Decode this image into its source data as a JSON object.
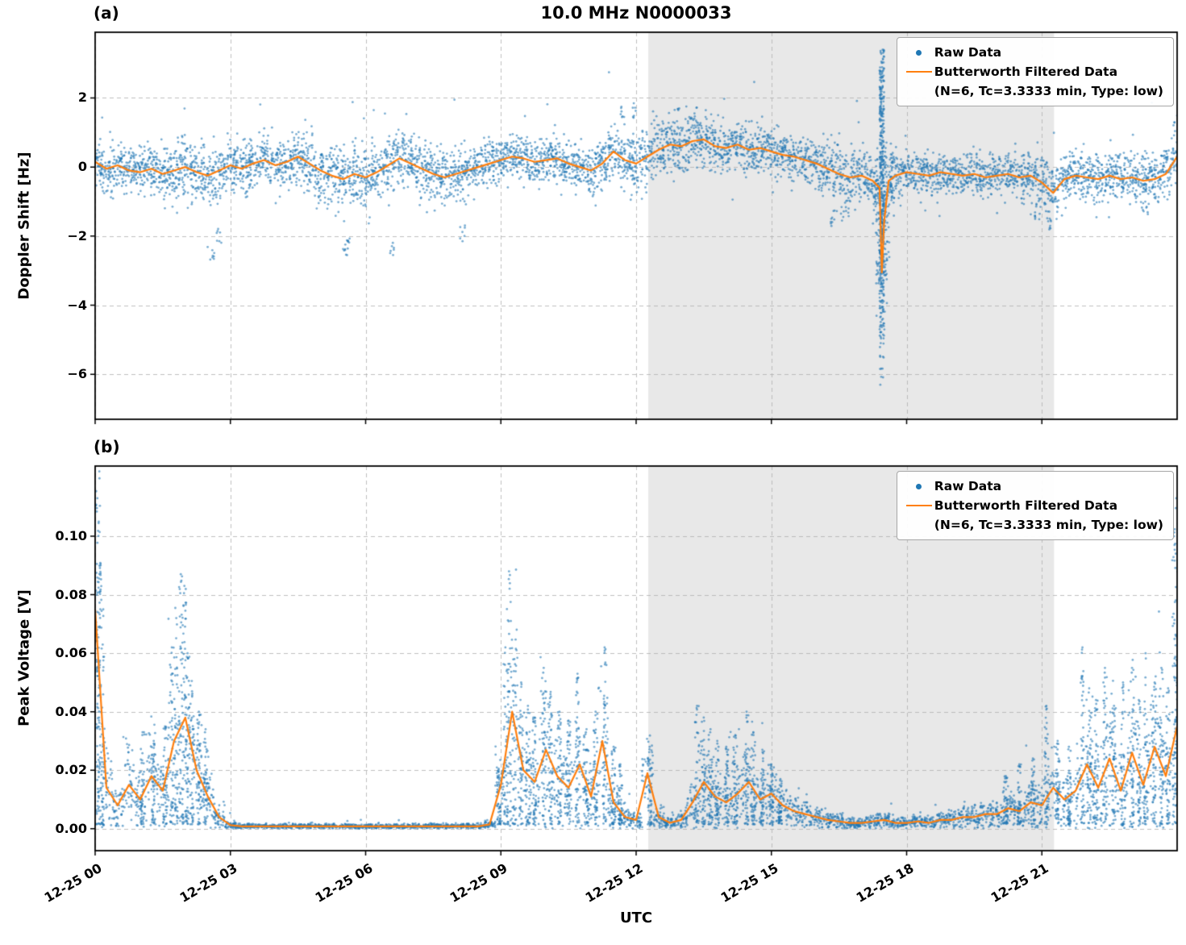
{
  "figure": {
    "title": "10.0 MHz N0000033",
    "xlabel": "UTC",
    "panels": [
      {
        "tag": "(a)",
        "ylabel": "Doppler Shift [Hz]"
      },
      {
        "tag": "(b)",
        "ylabel": "Peak Voltage [V]"
      }
    ]
  },
  "legend": {
    "raw_label": "Raw Data",
    "filtered_label": "Butterworth Filtered Data",
    "filtered_sublabel": "(N=6, Tc=3.3333 min, Type: low)"
  },
  "colors": {
    "raw": "#1f77b4",
    "filtered": "#ff7f0e",
    "shade": "#e8e8e8",
    "grid": "#b3b3b3",
    "axis": "#000000"
  },
  "chart_data": [
    {
      "type": "scatter",
      "panel": "(a)",
      "title": "10.0 MHz N0000033",
      "xlabel": "UTC",
      "ylabel": "Doppler Shift [Hz]",
      "xlim": [
        0,
        24
      ],
      "ylim": [
        -7.3,
        3.9
      ],
      "xticks": [
        0,
        3,
        6,
        9,
        12,
        15,
        18,
        21
      ],
      "xtick_labels": [
        "12-25 00",
        "12-25 03",
        "12-25 06",
        "12-25 09",
        "12-25 12",
        "12-25 15",
        "12-25 18",
        "12-25 21"
      ],
      "yticks": [
        2,
        0,
        -2,
        -4,
        -6
      ],
      "ytick_labels": [
        "2",
        "0",
        "−2",
        "−4",
        "−6"
      ],
      "shade_x": [
        12.27,
        21.27
      ],
      "show_xtick_labels": false,
      "legend_position": "upper right",
      "grid": "dashed",
      "series": [
        {
          "name": "Raw Data",
          "kind": "scatter"
        },
        {
          "name": "Butterworth Filtered Data (N=6, Tc=3.3333 min, Type: low)",
          "kind": "line"
        }
      ],
      "scatter_alpha": 0.6,
      "points_per_sample": 60,
      "x": [
        0,
        0.25,
        0.5,
        0.75,
        1,
        1.25,
        1.5,
        1.75,
        2,
        2.25,
        2.5,
        2.75,
        3,
        3.25,
        3.5,
        3.75,
        4,
        4.25,
        4.5,
        4.75,
        5,
        5.25,
        5.5,
        5.75,
        6,
        6.25,
        6.5,
        6.75,
        7,
        7.25,
        7.5,
        7.75,
        8,
        8.25,
        8.5,
        8.75,
        9,
        9.25,
        9.5,
        9.75,
        10,
        10.25,
        10.5,
        10.75,
        11,
        11.25,
        11.5,
        11.75,
        12,
        12.25,
        12.5,
        12.75,
        13,
        13.25,
        13.5,
        13.75,
        14,
        14.25,
        14.5,
        14.75,
        15,
        15.25,
        15.5,
        15.75,
        16,
        16.25,
        16.5,
        16.75,
        17,
        17.25,
        17.4,
        17.45,
        17.5,
        17.6,
        17.75,
        18,
        18.25,
        18.5,
        18.75,
        19,
        19.25,
        19.5,
        19.75,
        20,
        20.25,
        20.5,
        20.75,
        21,
        21.25,
        21.5,
        21.75,
        22,
        22.25,
        22.5,
        22.75,
        23,
        23.25,
        23.5,
        23.75,
        24
      ],
      "filtered": [
        0.15,
        -0.05,
        0.05,
        -0.1,
        -0.15,
        -0.05,
        -0.2,
        -0.1,
        0,
        -0.15,
        -0.25,
        -0.1,
        0.05,
        -0.05,
        0.1,
        0.2,
        0.05,
        0.15,
        0.3,
        0.1,
        -0.1,
        -0.25,
        -0.35,
        -0.2,
        -0.3,
        -0.15,
        0.05,
        0.25,
        0.1,
        -0.05,
        -0.2,
        -0.3,
        -0.2,
        -0.1,
        0,
        0.1,
        0.2,
        0.3,
        0.25,
        0.15,
        0.2,
        0.25,
        0.1,
        0,
        -0.1,
        0.1,
        0.45,
        0.2,
        0.1,
        0.3,
        0.5,
        0.65,
        0.6,
        0.75,
        0.8,
        0.6,
        0.55,
        0.65,
        0.5,
        0.55,
        0.45,
        0.35,
        0.3,
        0.2,
        0.1,
        -0.05,
        -0.2,
        -0.3,
        -0.25,
        -0.4,
        -0.6,
        -3.05,
        -1.6,
        -0.4,
        -0.25,
        -0.15,
        -0.2,
        -0.25,
        -0.15,
        -0.2,
        -0.25,
        -0.2,
        -0.3,
        -0.25,
        -0.2,
        -0.3,
        -0.25,
        -0.45,
        -0.75,
        -0.35,
        -0.25,
        -0.3,
        -0.35,
        -0.25,
        -0.35,
        -0.3,
        -0.4,
        -0.35,
        -0.2,
        0.3
      ],
      "spread": [
        0.3,
        0.3,
        0.3,
        0.3,
        0.32,
        0.32,
        0.4,
        0.42,
        0.42,
        0.42,
        0.44,
        0.42,
        0.4,
        0.38,
        0.35,
        0.35,
        0.35,
        0.35,
        0.35,
        0.36,
        0.4,
        0.42,
        0.42,
        0.4,
        0.4,
        0.38,
        0.4,
        0.4,
        0.38,
        0.38,
        0.4,
        0.4,
        0.38,
        0.35,
        0.33,
        0.32,
        0.3,
        0.3,
        0.28,
        0.28,
        0.28,
        0.28,
        0.28,
        0.3,
        0.32,
        0.36,
        0.4,
        0.38,
        0.4,
        0.42,
        0.42,
        0.4,
        0.4,
        0.38,
        0.36,
        0.35,
        0.35,
        0.34,
        0.33,
        0.33,
        0.32,
        0.3,
        0.3,
        0.3,
        0.32,
        0.38,
        0.42,
        0.42,
        0.4,
        0.42,
        0.5,
        0.6,
        0.55,
        0.45,
        0.35,
        0.32,
        0.3,
        0.3,
        0.3,
        0.3,
        0.3,
        0.3,
        0.3,
        0.3,
        0.3,
        0.3,
        0.32,
        0.38,
        0.42,
        0.35,
        0.32,
        0.32,
        0.32,
        0.32,
        0.32,
        0.32,
        0.34,
        0.34,
        0.35,
        0.4
      ],
      "outliers": [
        [
          2.6,
          -2.5
        ],
        [
          2.75,
          -2.0
        ],
        [
          5.55,
          -2.6
        ],
        [
          5.6,
          -2.2
        ],
        [
          6.6,
          -2.3
        ],
        [
          8.15,
          -1.9
        ],
        [
          11.7,
          1.5
        ],
        [
          11.95,
          1.6
        ],
        [
          12.9,
          1.5
        ],
        [
          13.3,
          1.5
        ],
        [
          16.35,
          -1.5
        ],
        [
          16.6,
          -1.4
        ],
        [
          20.9,
          -1.3
        ],
        [
          21.15,
          -1.6
        ],
        [
          23.3,
          -1.2
        ]
      ],
      "event": {
        "x": 17.45,
        "ymin": -6.8,
        "ymax": 3.4,
        "n": 380
      }
    },
    {
      "type": "scatter",
      "panel": "(b)",
      "xlabel": "UTC",
      "ylabel": "Peak Voltage [V]",
      "xlim": [
        0,
        24
      ],
      "ylim": [
        -0.0075,
        0.124
      ],
      "xticks": [
        0,
        3,
        6,
        9,
        12,
        15,
        18,
        21
      ],
      "xtick_labels": [
        "12-25 00",
        "12-25 03",
        "12-25 06",
        "12-25 09",
        "12-25 12",
        "12-25 15",
        "12-25 18",
        "12-25 21"
      ],
      "yticks": [
        0,
        0.02,
        0.04,
        0.06,
        0.08,
        0.1
      ],
      "ytick_labels": [
        "0.00",
        "0.02",
        "0.04",
        "0.06",
        "0.08",
        "0.10"
      ],
      "shade_x": [
        12.27,
        21.27
      ],
      "show_xtick_labels": true,
      "legend_position": "upper right",
      "grid": "dashed",
      "series": [
        {
          "name": "Raw Data",
          "kind": "scatter"
        },
        {
          "name": "Butterworth Filtered Data (N=6, Tc=3.3333 min, Type: low)",
          "kind": "line"
        }
      ],
      "scatter_alpha": 0.6,
      "points_per_sample": 45,
      "nonneg": true,
      "spread_factor": 0.45,
      "spread_min": 0.0001,
      "x": [
        0,
        0.25,
        0.5,
        0.75,
        1,
        1.25,
        1.5,
        1.75,
        2,
        2.25,
        2.5,
        2.75,
        3,
        3.25,
        3.5,
        3.75,
        4,
        4.25,
        4.5,
        4.75,
        5,
        5.25,
        5.5,
        5.75,
        6,
        6.25,
        6.5,
        6.75,
        7,
        7.25,
        7.5,
        7.75,
        8,
        8.25,
        8.5,
        8.75,
        9,
        9.25,
        9.5,
        9.75,
        10,
        10.25,
        10.5,
        10.75,
        11,
        11.25,
        11.5,
        11.75,
        12,
        12.25,
        12.5,
        12.75,
        13,
        13.25,
        13.5,
        13.75,
        14,
        14.25,
        14.5,
        14.75,
        15,
        15.25,
        15.5,
        15.75,
        16,
        16.25,
        16.5,
        16.75,
        17,
        17.25,
        17.5,
        17.75,
        18,
        18.25,
        18.5,
        18.75,
        19,
        19.25,
        19.5,
        19.75,
        20,
        20.25,
        20.5,
        20.75,
        21,
        21.25,
        21.5,
        21.75,
        22,
        22.25,
        22.5,
        22.75,
        23,
        23.25,
        23.5,
        23.75,
        24
      ],
      "filtered": [
        0.075,
        0.014,
        0.008,
        0.015,
        0.01,
        0.018,
        0.013,
        0.03,
        0.038,
        0.02,
        0.011,
        0.004,
        0.0012,
        0.0008,
        0.0008,
        0.0008,
        0.0008,
        0.0008,
        0.0008,
        0.0008,
        0.0008,
        0.0008,
        0.0008,
        0.0008,
        0.0008,
        0.0008,
        0.0008,
        0.0008,
        0.0008,
        0.0008,
        0.0008,
        0.0008,
        0.0008,
        0.0008,
        0.0008,
        0.0015,
        0.015,
        0.04,
        0.02,
        0.016,
        0.027,
        0.018,
        0.014,
        0.022,
        0.011,
        0.03,
        0.009,
        0.004,
        0.003,
        0.019,
        0.004,
        0.002,
        0.003,
        0.009,
        0.016,
        0.011,
        0.009,
        0.012,
        0.016,
        0.01,
        0.012,
        0.008,
        0.006,
        0.005,
        0.004,
        0.003,
        0.0025,
        0.002,
        0.002,
        0.0025,
        0.003,
        0.002,
        0.002,
        0.0025,
        0.002,
        0.003,
        0.003,
        0.004,
        0.004,
        0.005,
        0.005,
        0.007,
        0.006,
        0.009,
        0.008,
        0.014,
        0.01,
        0.013,
        0.022,
        0.014,
        0.024,
        0.013,
        0.026,
        0.015,
        0.028,
        0.018,
        0.035
      ],
      "peaks": [
        [
          0.05,
          0.113
        ],
        [
          0.08,
          0.105
        ],
        [
          0.12,
          0.09
        ],
        [
          0.18,
          0.075
        ],
        [
          1.05,
          0.033
        ],
        [
          1.3,
          0.03
        ],
        [
          1.55,
          0.035
        ],
        [
          1.7,
          0.062
        ],
        [
          1.8,
          0.072
        ],
        [
          1.9,
          0.087
        ],
        [
          1.98,
          0.083
        ],
        [
          2.05,
          0.06
        ],
        [
          2.15,
          0.047
        ],
        [
          2.3,
          0.04
        ],
        [
          2.45,
          0.034
        ],
        [
          8.95,
          0.02
        ],
        [
          9.1,
          0.062
        ],
        [
          9.18,
          0.088
        ],
        [
          9.3,
          0.058
        ],
        [
          9.45,
          0.05
        ],
        [
          9.6,
          0.042
        ],
        [
          9.75,
          0.038
        ],
        [
          9.95,
          0.055
        ],
        [
          10.1,
          0.046
        ],
        [
          10.3,
          0.04
        ],
        [
          10.5,
          0.037
        ],
        [
          10.7,
          0.053
        ],
        [
          10.9,
          0.034
        ],
        [
          11.1,
          0.04
        ],
        [
          11.3,
          0.062
        ],
        [
          11.5,
          0.028
        ],
        [
          11.65,
          0.022
        ],
        [
          12.3,
          0.028
        ],
        [
          13.35,
          0.042
        ],
        [
          13.5,
          0.038
        ],
        [
          13.65,
          0.034
        ],
        [
          13.8,
          0.03
        ],
        [
          14.0,
          0.028
        ],
        [
          14.2,
          0.032
        ],
        [
          14.45,
          0.04
        ],
        [
          14.6,
          0.033
        ],
        [
          14.8,
          0.027
        ],
        [
          15.0,
          0.022
        ],
        [
          15.2,
          0.017
        ],
        [
          20.2,
          0.018
        ],
        [
          20.5,
          0.022
        ],
        [
          20.8,
          0.024
        ],
        [
          21.1,
          0.042
        ],
        [
          21.35,
          0.03
        ],
        [
          21.6,
          0.028
        ],
        [
          21.9,
          0.062
        ],
        [
          22.05,
          0.048
        ],
        [
          22.2,
          0.044
        ],
        [
          22.4,
          0.055
        ],
        [
          22.6,
          0.042
        ],
        [
          22.8,
          0.05
        ],
        [
          23.0,
          0.055
        ],
        [
          23.15,
          0.044
        ],
        [
          23.3,
          0.06
        ],
        [
          23.5,
          0.05
        ],
        [
          23.65,
          0.055
        ],
        [
          23.8,
          0.048
        ],
        [
          23.93,
          0.1
        ],
        [
          23.98,
          0.113
        ]
      ]
    }
  ]
}
